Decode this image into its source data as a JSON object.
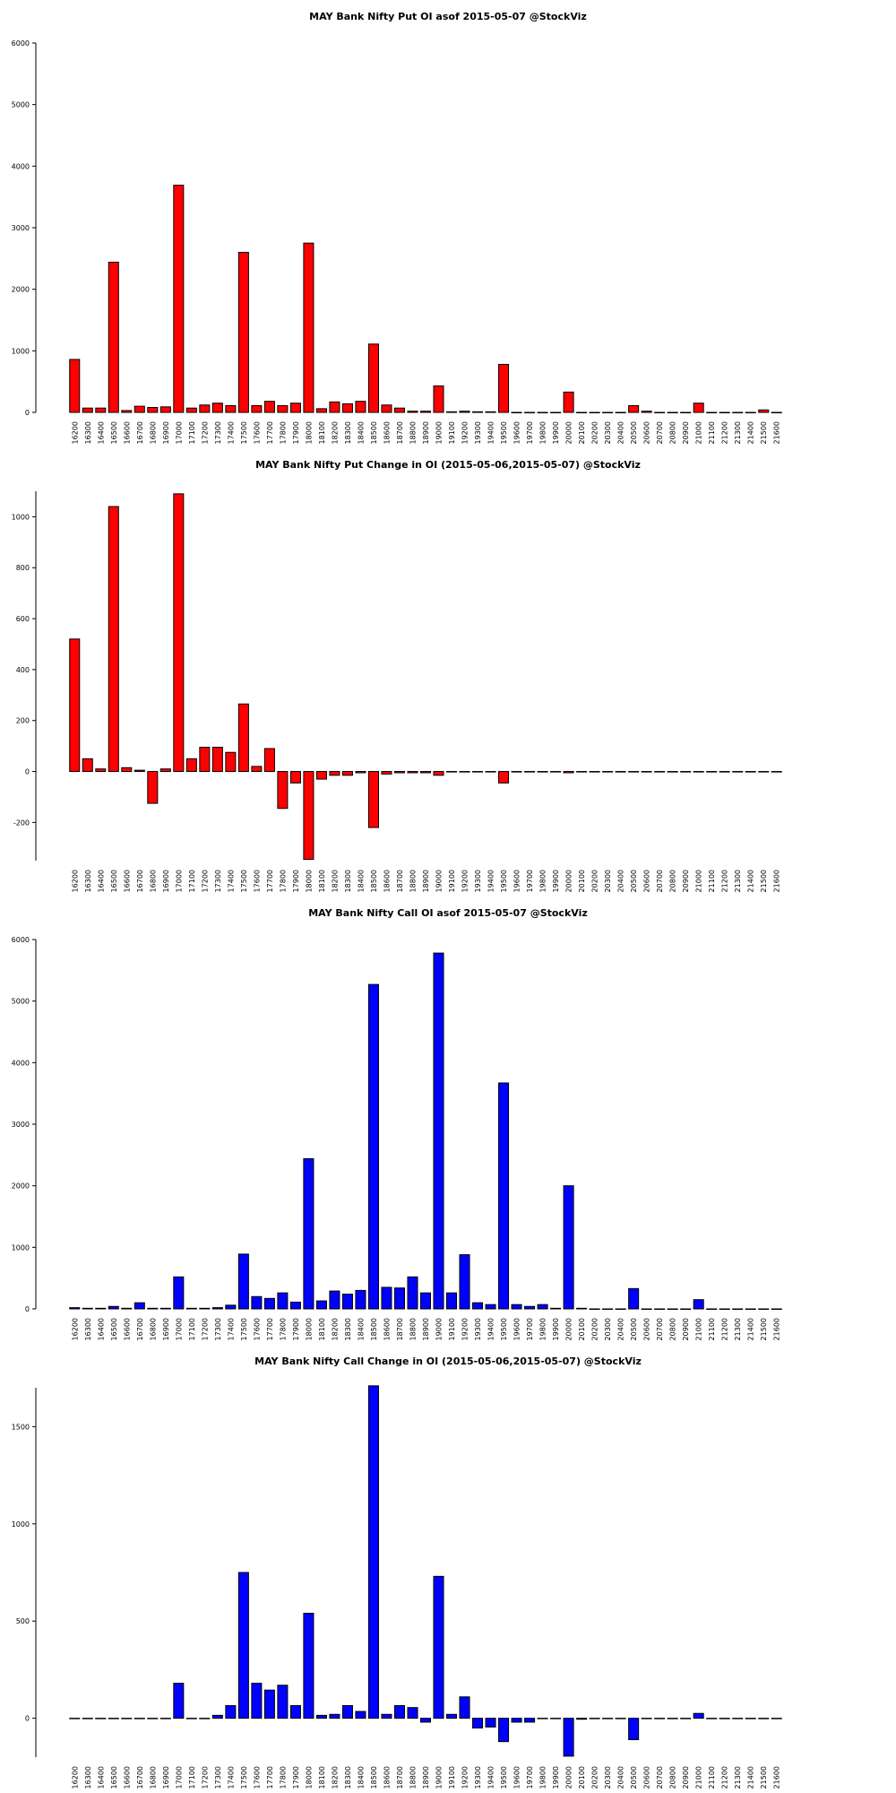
{
  "chart_data": [
    {
      "type": "bar",
      "title": "MAY Bank Nifty Put OI asof 2015-05-07 @StockViz",
      "color": "#ff0000",
      "categories": [
        "16200",
        "16300",
        "16400",
        "16500",
        "16600",
        "16700",
        "16800",
        "16900",
        "17000",
        "17100",
        "17200",
        "17300",
        "17400",
        "17500",
        "17600",
        "17700",
        "17800",
        "17900",
        "18000",
        "18100",
        "18200",
        "18300",
        "18400",
        "18500",
        "18600",
        "18700",
        "18800",
        "18900",
        "19000",
        "19100",
        "19200",
        "19300",
        "19400",
        "19500",
        "19600",
        "19700",
        "19800",
        "19900",
        "20000",
        "20100",
        "20200",
        "20300",
        "20400",
        "20500",
        "20600",
        "20700",
        "20800",
        "20900",
        "21000",
        "21100",
        "21200",
        "21300",
        "21400",
        "21500",
        "21600"
      ],
      "values": [
        860,
        70,
        70,
        2440,
        30,
        100,
        80,
        90,
        3690,
        70,
        120,
        150,
        110,
        2600,
        110,
        180,
        110,
        150,
        2750,
        60,
        170,
        140,
        180,
        1110,
        120,
        70,
        20,
        20,
        430,
        10,
        20,
        10,
        10,
        780,
        0,
        0,
        0,
        0,
        330,
        0,
        0,
        0,
        0,
        110,
        20,
        0,
        0,
        0,
        150,
        0,
        0,
        0,
        0,
        40,
        0
      ],
      "ylim": [
        0,
        6000
      ],
      "yticks": [
        0,
        1000,
        2000,
        3000,
        4000,
        5000,
        6000
      ]
    },
    {
      "type": "bar",
      "title": "MAY Bank Nifty Put Change in OI (2015-05-06,2015-05-07) @StockViz",
      "color": "#ff0000",
      "categories": [
        "16200",
        "16300",
        "16400",
        "16500",
        "16600",
        "16700",
        "16800",
        "16900",
        "17000",
        "17100",
        "17200",
        "17300",
        "17400",
        "17500",
        "17600",
        "17700",
        "17800",
        "17900",
        "18000",
        "18100",
        "18200",
        "18300",
        "18400",
        "18500",
        "18600",
        "18700",
        "18800",
        "18900",
        "19000",
        "19100",
        "19200",
        "19300",
        "19400",
        "19500",
        "19600",
        "19700",
        "19800",
        "19900",
        "20000",
        "20100",
        "20200",
        "20300",
        "20400",
        "20500",
        "20600",
        "20700",
        "20800",
        "20900",
        "21000",
        "21100",
        "21200",
        "21300",
        "21400",
        "21500",
        "21600"
      ],
      "values": [
        520,
        50,
        10,
        1040,
        15,
        5,
        -125,
        10,
        1090,
        50,
        95,
        95,
        75,
        265,
        20,
        90,
        -145,
        -45,
        -345,
        -30,
        -15,
        -15,
        -5,
        -220,
        -10,
        -5,
        -5,
        -5,
        -15,
        -2,
        -2,
        -2,
        -2,
        -45,
        -2,
        -2,
        -2,
        -2,
        -5,
        -2,
        -2,
        -2,
        -2,
        -2,
        -2,
        -2,
        -2,
        -2,
        -2,
        -2,
        -2,
        -2,
        -2,
        -2,
        -2
      ],
      "ylim": [
        -350,
        1100
      ],
      "yticks": [
        -200,
        0,
        200,
        400,
        600,
        800,
        1000
      ]
    },
    {
      "type": "bar",
      "title": "MAY Bank Nifty Call OI asof 2015-05-07 @StockViz",
      "color": "#0000ff",
      "categories": [
        "16200",
        "16300",
        "16400",
        "16500",
        "16600",
        "16700",
        "16800",
        "16900",
        "17000",
        "17100",
        "17200",
        "17300",
        "17400",
        "17500",
        "17600",
        "17700",
        "17800",
        "17900",
        "18000",
        "18100",
        "18200",
        "18300",
        "18400",
        "18500",
        "18600",
        "18700",
        "18800",
        "18900",
        "19000",
        "19100",
        "19200",
        "19300",
        "19400",
        "19500",
        "19600",
        "19700",
        "19800",
        "19900",
        "20000",
        "20100",
        "20200",
        "20300",
        "20400",
        "20500",
        "20600",
        "20700",
        "20800",
        "20900",
        "21000",
        "21100",
        "21200",
        "21300",
        "21400",
        "21500",
        "21600"
      ],
      "values": [
        20,
        10,
        10,
        40,
        10,
        100,
        10,
        10,
        520,
        10,
        10,
        20,
        60,
        890,
        200,
        170,
        260,
        110,
        2440,
        130,
        290,
        240,
        300,
        5270,
        350,
        340,
        520,
        260,
        5780,
        260,
        880,
        100,
        70,
        3670,
        70,
        40,
        70,
        10,
        2000,
        10,
        0,
        0,
        0,
        330,
        0,
        0,
        0,
        0,
        150,
        0,
        0,
        0,
        0,
        0,
        0
      ],
      "ylim": [
        0,
        6000
      ],
      "yticks": [
        0,
        1000,
        2000,
        3000,
        4000,
        5000,
        6000
      ]
    },
    {
      "type": "bar",
      "title": "MAY Bank Nifty Call Change in OI (2015-05-06,2015-05-07) @StockViz",
      "color": "#0000ff",
      "categories": [
        "16200",
        "16300",
        "16400",
        "16500",
        "16600",
        "16700",
        "16800",
        "16900",
        "17000",
        "17100",
        "17200",
        "17300",
        "17400",
        "17500",
        "17600",
        "17700",
        "17800",
        "17900",
        "18000",
        "18100",
        "18200",
        "18300",
        "18400",
        "18500",
        "18600",
        "18700",
        "18800",
        "18900",
        "19000",
        "19100",
        "19200",
        "19300",
        "19400",
        "19500",
        "19600",
        "19700",
        "19800",
        "19900",
        "20000",
        "20100",
        "20200",
        "20300",
        "20400",
        "20500",
        "20600",
        "20700",
        "20800",
        "20900",
        "21000",
        "21100",
        "21200",
        "21300",
        "21400",
        "21500",
        "21600"
      ],
      "values": [
        0,
        0,
        0,
        0,
        0,
        0,
        0,
        0,
        180,
        0,
        0,
        15,
        65,
        750,
        180,
        145,
        170,
        65,
        540,
        15,
        20,
        65,
        35,
        1710,
        20,
        65,
        55,
        -20,
        730,
        20,
        110,
        -50,
        -45,
        -120,
        -20,
        -20,
        0,
        0,
        -195,
        -5,
        0,
        0,
        0,
        -110,
        0,
        0,
        0,
        0,
        25,
        0,
        0,
        0,
        0,
        0,
        0
      ],
      "ylim": [
        -200,
        1700
      ],
      "yticks": [
        0,
        500,
        1000,
        1500
      ]
    }
  ]
}
